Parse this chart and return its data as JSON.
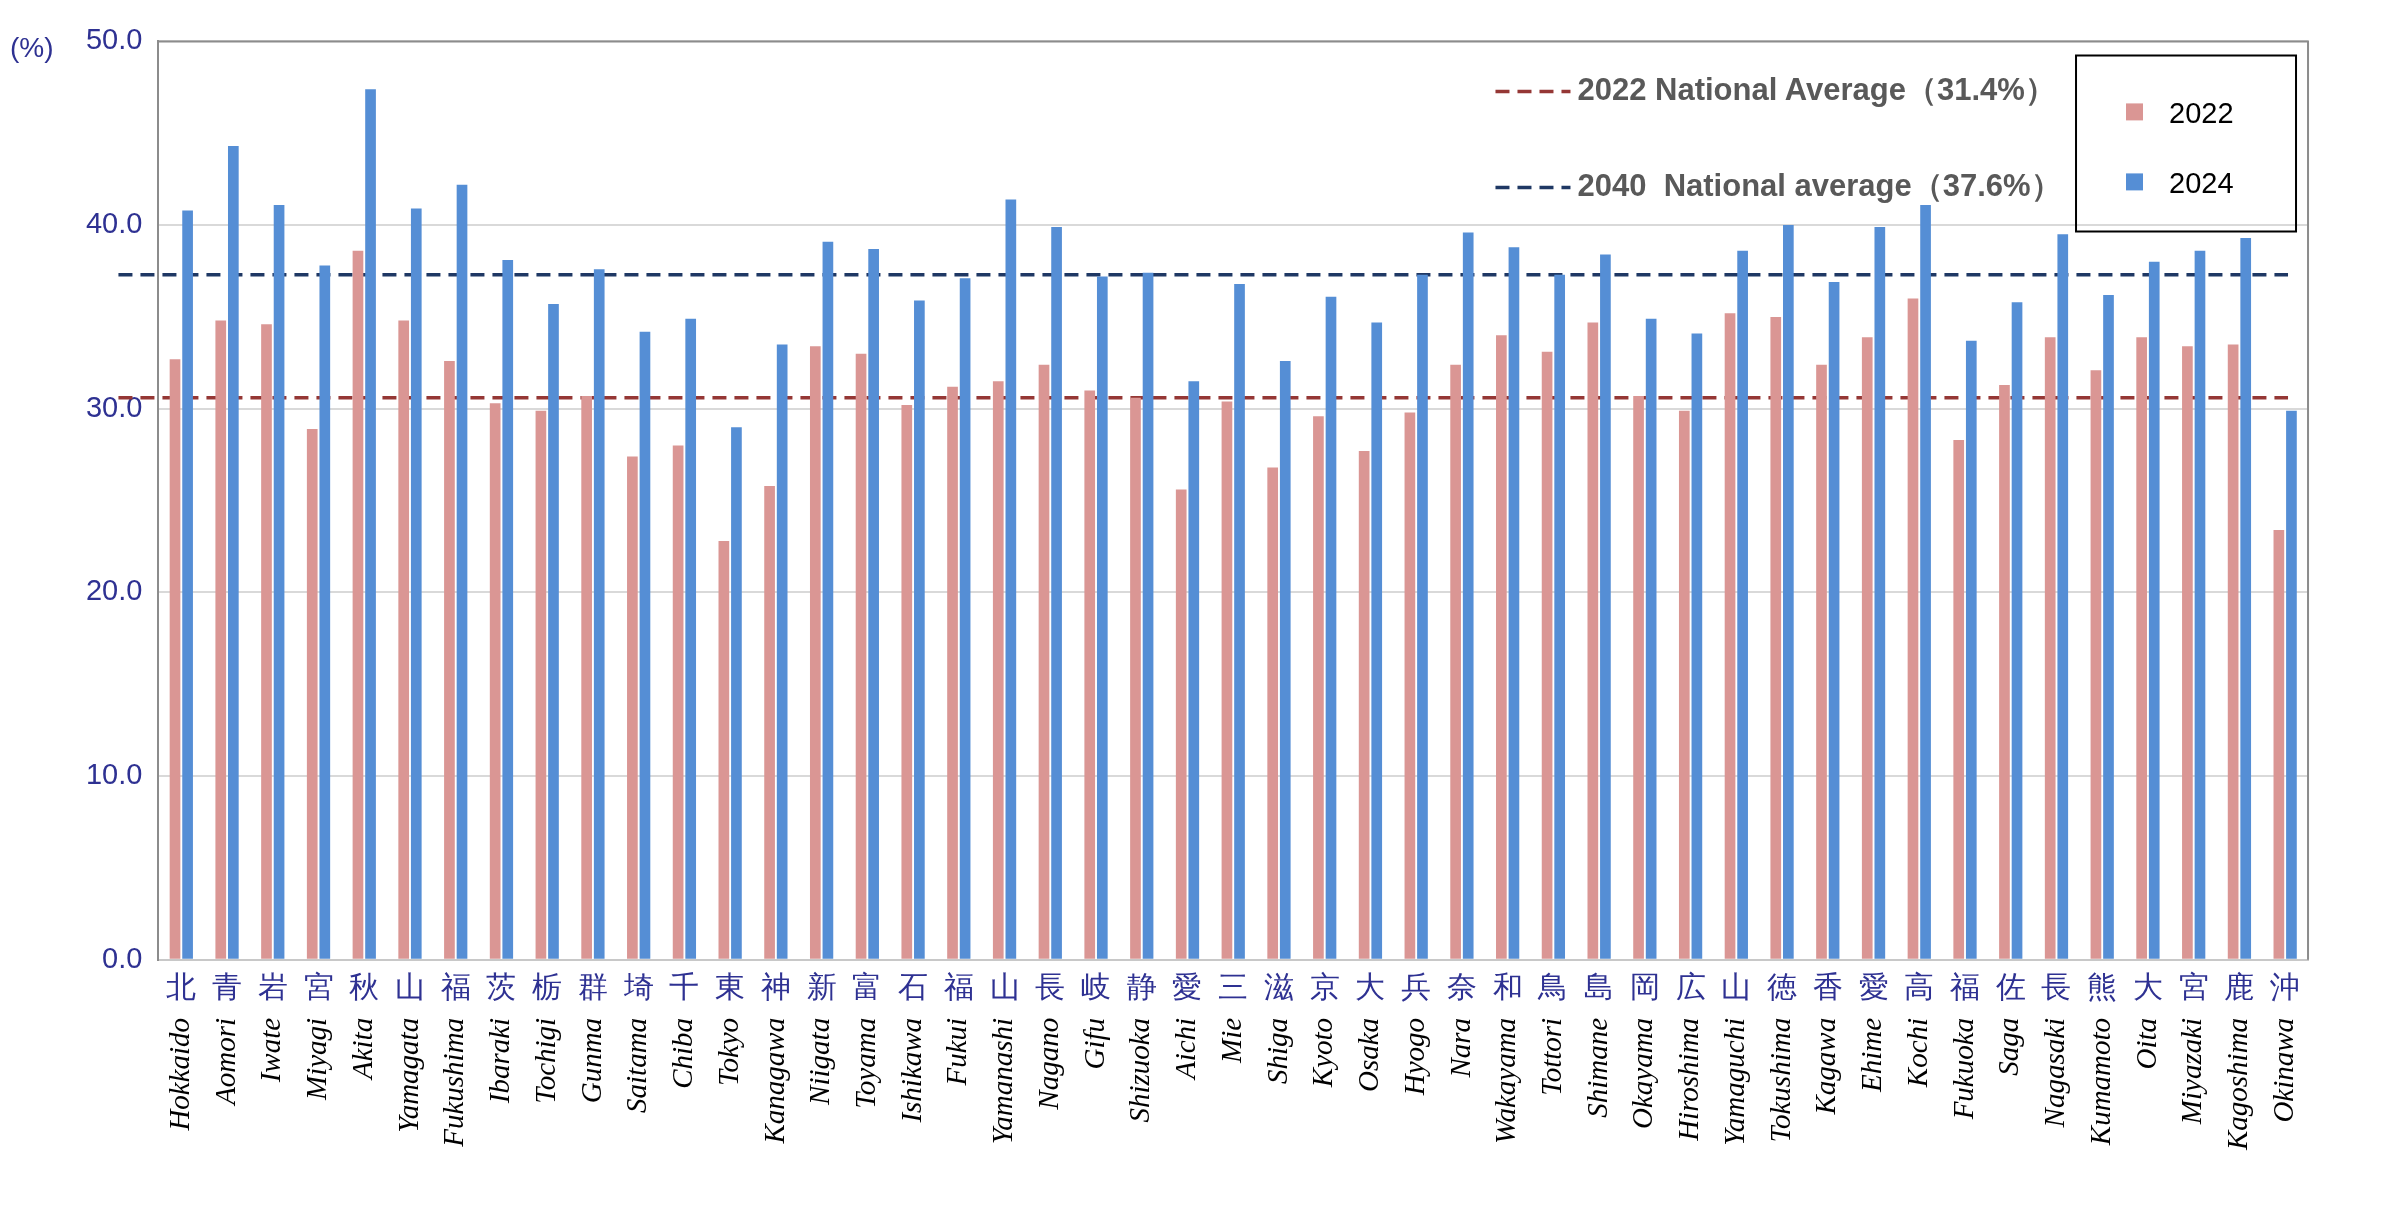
{
  "chart_data": {
    "type": "bar",
    "ylabel": "(%)",
    "categories": [
      "Hokkaido",
      "Aomori",
      "Iwate",
      "Miyagi",
      "Akita",
      "Yamagata",
      "Fukushima",
      "Ibaraki",
      "Tochigi",
      "Gunma",
      "Saitama",
      "Chiba",
      "Tokyo",
      "Kanagawa",
      "Niigata",
      "Toyama",
      "Ishikawa",
      "Fukui",
      "Yamanashi",
      "Nagano",
      "Gifu",
      "Shizuoka",
      "Aichi",
      "Mie",
      "Shiga",
      "Kyoto",
      "Osaka",
      "Hyogo",
      "Nara",
      "Wakayama",
      "Tottori",
      "Shimane",
      "Okayama",
      "Hiroshima",
      "Yamaguchi",
      "Tokushima",
      "Kagawa",
      "Ehime",
      "Kochi",
      "Fukuoka",
      "Saga",
      "Nagasaki",
      "Kumamoto",
      "Oita",
      "Miyazaki",
      "Kagoshima",
      "Okinawa"
    ],
    "series": [
      {
        "name": "2022",
        "color": "#da9694",
        "values": [
          32.7,
          34.8,
          34.6,
          28.9,
          38.6,
          34.8,
          32.6,
          30.3,
          29.9,
          30.7,
          27.4,
          28.0,
          22.8,
          25.8,
          33.4,
          33.0,
          30.2,
          31.2,
          31.5,
          32.4,
          31.0,
          30.6,
          25.6,
          30.4,
          26.8,
          29.6,
          27.7,
          29.8,
          32.4,
          34.0,
          33.1,
          34.7,
          30.7,
          29.9,
          35.2,
          35.0,
          32.4,
          33.9,
          36.0,
          28.3,
          31.3,
          33.9,
          32.1,
          33.9,
          33.4,
          33.5,
          23.4
        ]
      },
      {
        "name": "2024",
        "color": "#558ed5",
        "values": [
          40.8,
          44.3,
          41.1,
          37.8,
          47.4,
          40.9,
          42.2,
          38.1,
          35.7,
          37.6,
          34.2,
          34.9,
          29.0,
          33.5,
          39.1,
          38.7,
          35.9,
          37.1,
          41.4,
          39.9,
          37.2,
          37.4,
          31.5,
          36.8,
          32.6,
          36.1,
          34.7,
          37.3,
          39.6,
          38.8,
          37.3,
          38.4,
          34.9,
          34.1,
          38.6,
          40.0,
          36.9,
          39.9,
          41.1,
          33.7,
          35.8,
          39.5,
          36.2,
          38.0,
          38.6,
          39.3,
          29.9
        ]
      }
    ],
    "ylim": [
      0,
      50
    ],
    "yticks": [
      {
        "value": 0,
        "label": "0.0"
      },
      {
        "value": 10,
        "label": "10.0"
      },
      {
        "value": 20,
        "label": "20.0"
      },
      {
        "value": 30,
        "label": "30.0"
      },
      {
        "value": 40,
        "label": "40.0"
      },
      {
        "value": 50,
        "label": "50.0"
      }
    ],
    "grid": "y",
    "legend": "top right",
    "ref_lines": [
      {
        "axis": "y",
        "value": 30.6,
        "label": "2022 National Average（31.4%）",
        "color": "#953735",
        "line_style": "dashed"
      },
      {
        "axis": "y",
        "value": 37.3,
        "label": "2040  National average（37.6%）",
        "color": "#1f3864",
        "line_style": "dashed"
      }
    ],
    "annotations": [
      "北",
      "青",
      "岩",
      "宮",
      "秋",
      "山",
      "福",
      "茨",
      "栃",
      "群",
      "埼",
      "千",
      "東",
      "神",
      "新",
      "富",
      "石",
      "福",
      "山",
      "長",
      "岐",
      "静",
      "愛",
      "三",
      "滋",
      "京",
      "大",
      "兵",
      "奈",
      "和",
      "鳥",
      "島",
      "岡",
      "広",
      "山",
      "徳",
      "香",
      "愛",
      "高",
      "福",
      "佐",
      "長",
      "熊",
      "大",
      "宮",
      "鹿",
      "沖"
    ]
  }
}
